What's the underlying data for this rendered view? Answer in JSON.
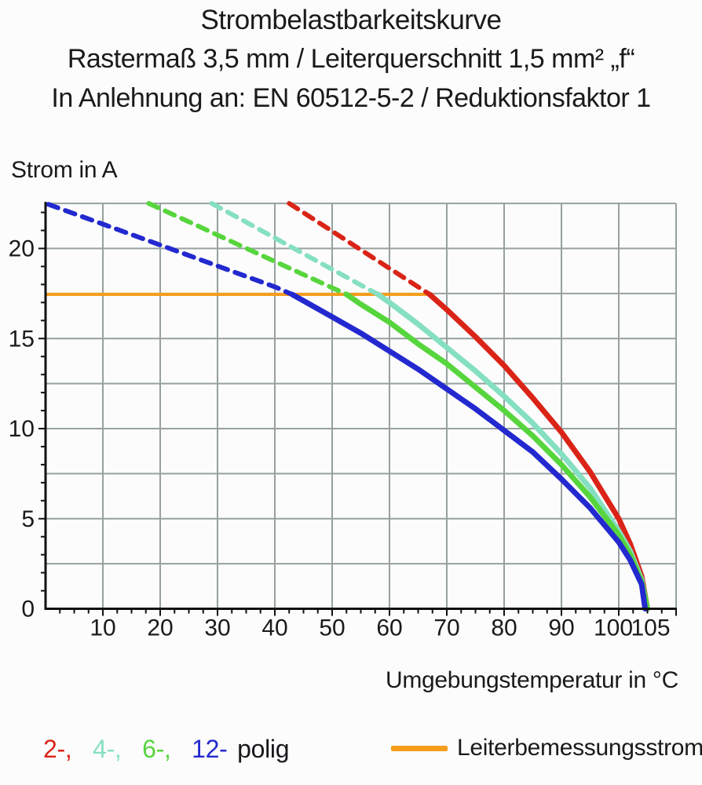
{
  "title": {
    "line1": "Strombelastbarkeitskurve",
    "line2": "Rastermaß 3,5 mm / Leiterquerschnitt 1,5 mm² „f“",
    "line3": "In Anlehnung an: EN 60512-5-2 / Reduktionsfaktor 1"
  },
  "y_axis_title": "Strom in A",
  "x_axis_title": "Umgebungstemperatur in °C",
  "legend": {
    "series_labels": [
      {
        "label": "2-,",
        "color": "#da2418"
      },
      {
        "label": "4-,",
        "color": "#85dfc1"
      },
      {
        "label": "6-,",
        "color": "#57d53d"
      },
      {
        "label": "12-",
        "color": "#2329cf"
      }
    ],
    "suffix": "polig",
    "rated_label": "Leiterbemessungsstrom",
    "rated_color": "#f59d1b"
  },
  "colors": {
    "grid": "#97a0a0",
    "axis": "#111111",
    "tick_text": "#1a1a1a",
    "background": "#fcfcfc"
  },
  "chart_data": {
    "type": "line",
    "title": "Strombelastbarkeitskurve",
    "xlabel": "Umgebungstemperatur in °C",
    "ylabel": "Strom in A",
    "xlim": [
      0,
      110
    ],
    "ylim": [
      0,
      22.5
    ],
    "grid": true,
    "x_grid_step": 10,
    "y_grid_step": 2.5,
    "x_minor_tick_step": 2.5,
    "y_minor_tick_step": 1,
    "x_tick_labels": [
      10,
      20,
      30,
      40,
      50,
      60,
      70,
      80,
      90,
      100,
      105
    ],
    "y_tick_labels": [
      0,
      5,
      10,
      15,
      20
    ],
    "rated_current_line": {
      "label": "Leiterbemessungsstrom",
      "value_A": 17.45,
      "x_start": 0,
      "x_end": 67,
      "color": "#f59d1b"
    },
    "series": [
      {
        "name": "2-polig",
        "color": "#da2418",
        "dashed_points": [
          [
            42.5,
            22.5
          ],
          [
            50,
            20.96
          ],
          [
            57,
            19.51
          ],
          [
            63,
            18.28
          ],
          [
            67,
            17.45
          ]
        ],
        "solid_points": [
          [
            67,
            17.45
          ],
          [
            70,
            16.6
          ],
          [
            75,
            15.1
          ],
          [
            80,
            13.5
          ],
          [
            85,
            11.7
          ],
          [
            90,
            9.8
          ],
          [
            95,
            7.6
          ],
          [
            100,
            5.0
          ],
          [
            102,
            3.6
          ],
          [
            104,
            1.8
          ],
          [
            105,
            0
          ]
        ]
      },
      {
        "name": "4-polig",
        "color": "#85dfc1",
        "dashed_points": [
          [
            29,
            22.5
          ],
          [
            35,
            21.46
          ],
          [
            45,
            19.71
          ],
          [
            55,
            17.97
          ],
          [
            58,
            17.45
          ]
        ],
        "solid_points": [
          [
            58,
            17.45
          ],
          [
            60,
            17.0
          ],
          [
            65,
            15.8
          ],
          [
            70,
            14.5
          ],
          [
            75,
            13.2
          ],
          [
            80,
            11.8
          ],
          [
            85,
            10.3
          ],
          [
            90,
            8.6
          ],
          [
            95,
            6.7
          ],
          [
            100,
            4.3
          ],
          [
            102,
            3.2
          ],
          [
            104,
            1.6
          ],
          [
            105,
            0
          ]
        ]
      },
      {
        "name": "6-polig",
        "color": "#57d53d",
        "dashed_points": [
          [
            18,
            22.5
          ],
          [
            25,
            21.48
          ],
          [
            35,
            20.01
          ],
          [
            45,
            18.55
          ],
          [
            52.5,
            17.45
          ]
        ],
        "solid_points": [
          [
            52.5,
            17.45
          ],
          [
            55,
            16.9
          ],
          [
            60,
            15.9
          ],
          [
            65,
            14.7
          ],
          [
            70,
            13.6
          ],
          [
            75,
            12.3
          ],
          [
            80,
            11.0
          ],
          [
            85,
            9.6
          ],
          [
            90,
            8.0
          ],
          [
            95,
            6.2
          ],
          [
            100,
            4.1
          ],
          [
            102,
            3.0
          ],
          [
            104,
            1.5
          ],
          [
            105,
            0
          ]
        ]
      },
      {
        "name": "12-polig",
        "color": "#2329cf",
        "dashed_points": [
          [
            0.5,
            22.45
          ],
          [
            10,
            21.35
          ],
          [
            20,
            20.19
          ],
          [
            30,
            19.03
          ],
          [
            40,
            17.87
          ],
          [
            43,
            17.45
          ]
        ],
        "solid_points": [
          [
            43,
            17.45
          ],
          [
            47.5,
            16.65
          ],
          [
            50,
            16.2
          ],
          [
            55,
            15.3
          ],
          [
            60,
            14.3
          ],
          [
            65,
            13.3
          ],
          [
            70,
            12.2
          ],
          [
            75,
            11.1
          ],
          [
            80,
            9.9
          ],
          [
            85,
            8.7
          ],
          [
            90,
            7.2
          ],
          [
            95,
            5.6
          ],
          [
            100,
            3.7
          ],
          [
            102,
            2.7
          ],
          [
            104,
            1.35
          ],
          [
            104.6,
            0
          ]
        ]
      }
    ]
  }
}
